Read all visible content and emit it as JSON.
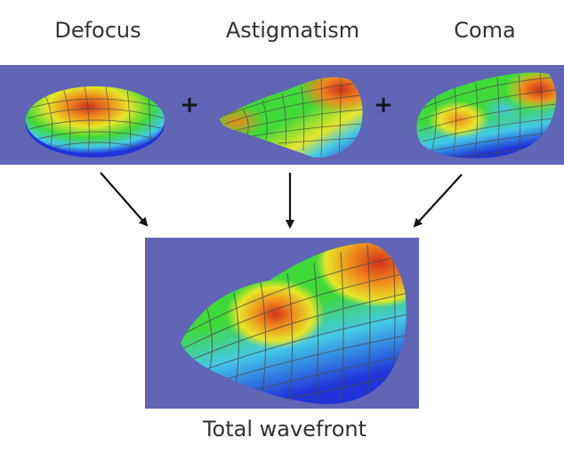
{
  "labels": {
    "defocus": "Defocus",
    "astigmatism": "Astigmatism",
    "coma": "Coma",
    "plus_sign": "+",
    "total": "Total wavefront"
  },
  "colors": {
    "background_panel": "#6165b5",
    "surface_red": "#d1321b",
    "surface_orange": "#f08a1c",
    "surface_yellow": "#e6e62a",
    "surface_green": "#3fd93a",
    "surface_cyan": "#44c9e8",
    "surface_blue": "#2034d9",
    "mesh_line": "#4a4a4a",
    "arrow": "#111111"
  }
}
